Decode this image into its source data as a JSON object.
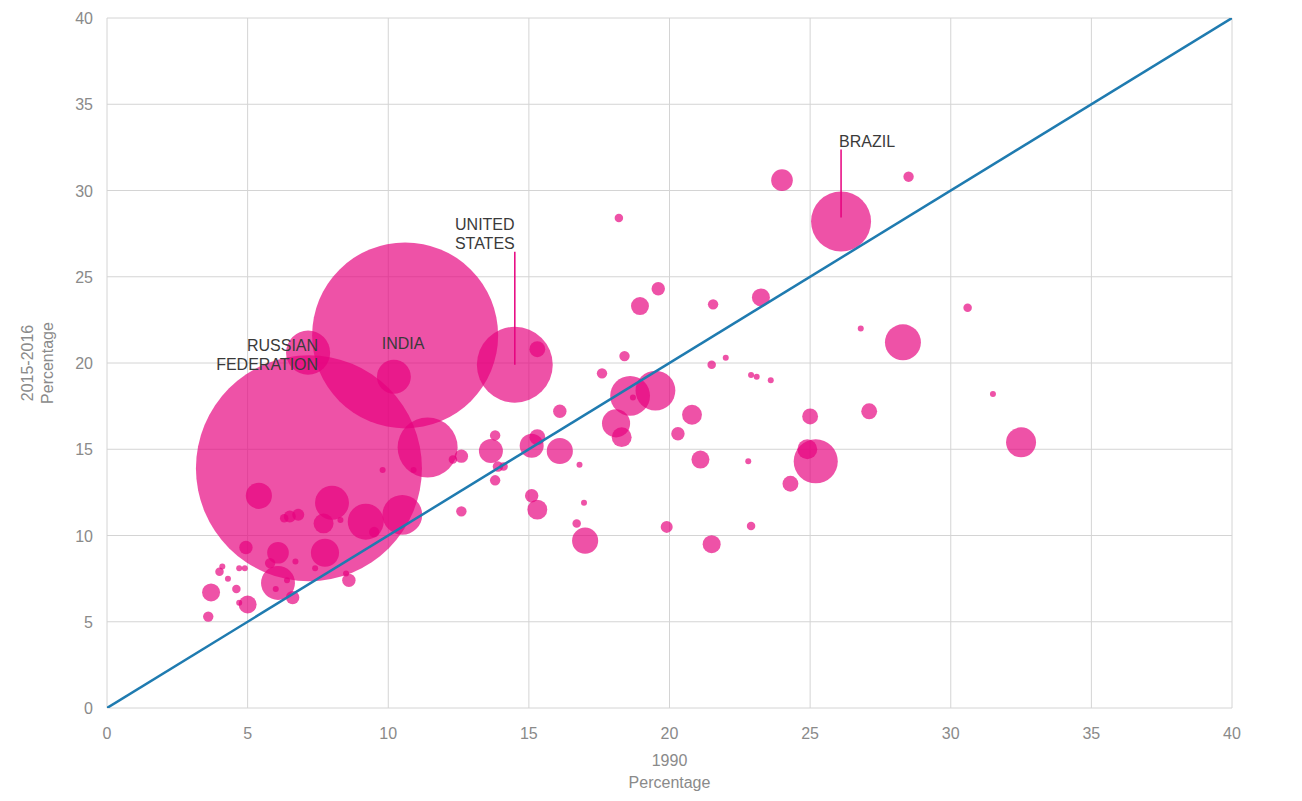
{
  "chart_data": {
    "type": "bubble",
    "x_label": [
      "1990",
      "Percentage"
    ],
    "y_label": [
      "2015-2016",
      "Percentage"
    ],
    "xlim": [
      0,
      40
    ],
    "ylim": [
      0,
      40
    ],
    "xticks": [
      0,
      5,
      10,
      15,
      20,
      25,
      30,
      35,
      40
    ],
    "yticks": [
      0,
      5,
      10,
      15,
      20,
      25,
      30,
      35,
      40
    ],
    "grid": true,
    "series": [
      {
        "type": "scatter",
        "color": "#e6007e",
        "x": [
          7.18,
          10.6,
          7.15,
          14.5,
          26.1,
          10.2,
          11.4,
          10.5,
          9.2,
          8.0,
          7.7,
          7.75,
          5.4,
          6.08,
          6.08,
          4.94,
          5.0,
          3.7,
          3.6,
          6.6,
          8.6,
          6.5,
          6.8,
          12.6,
          12.6,
          13.65,
          13.8,
          13.9,
          13.8,
          15.3,
          15.1,
          15.3,
          15.1,
          15.3,
          16.1,
          16.1,
          16.7,
          17.0,
          16.96,
          16.8,
          17.6,
          18.2,
          18.1,
          18.3,
          18.6,
          19.5,
          18.4,
          18.95,
          19.6,
          20.3,
          19.9,
          20.8,
          21.1,
          21.5,
          21.55,
          21.5,
          22.9,
          23.1,
          22.8,
          22.9,
          23.25,
          23.6,
          24.0,
          24.3,
          25.0,
          24.9,
          25.2,
          26.8,
          27.1,
          28.3,
          28.5,
          30.6,
          31.5,
          32.5,
          4.0,
          4.1,
          4.3,
          4.7,
          4.6,
          4.9,
          4.7,
          5.8,
          6.4,
          6.0,
          7.4,
          6.3,
          9.5,
          8.3,
          10.9,
          12.3,
          9.8,
          6.7,
          8.5,
          14.1,
          22.0,
          18.7
        ],
        "values": [
          13.9,
          21.6,
          20.6,
          19.9,
          28.2,
          19.2,
          15.1,
          11.2,
          10.8,
          11.9,
          10.7,
          9.0,
          12.3,
          9.0,
          7.25,
          9.3,
          6.0,
          6.7,
          5.3,
          6.4,
          7.4,
          11.1,
          11.2,
          14.6,
          11.4,
          14.9,
          15.8,
          14.0,
          13.2,
          20.8,
          15.2,
          15.7,
          12.3,
          11.5,
          14.9,
          17.2,
          10.7,
          9.7,
          11.9,
          14.1,
          19.4,
          28.4,
          16.5,
          15.7,
          18.1,
          18.4,
          20.4,
          23.3,
          24.3,
          15.9,
          10.5,
          17.0,
          14.4,
          19.9,
          23.4,
          9.5,
          19.3,
          19.2,
          14.3,
          10.55,
          23.8,
          19.0,
          30.6,
          13.0,
          16.9,
          15.0,
          14.3,
          22.0,
          17.2,
          21.2,
          30.8,
          23.2,
          18.2,
          15.4,
          7.9,
          8.2,
          7.5,
          8.1,
          6.9,
          8.1,
          6.1,
          8.4,
          7.4,
          6.9,
          8.1,
          11.0,
          10.2,
          10.9,
          13.8,
          14.4,
          13.8,
          8.5,
          7.8,
          14.0,
          20.3,
          18.0
        ],
        "size": [
          1419,
          961,
          54,
          160,
          100,
          32,
          100,
          44,
          36,
          32,
          11,
          22,
          19,
          13,
          32,
          5,
          9,
          9,
          3,
          5,
          5,
          4,
          4,
          5,
          3,
          16,
          3,
          3,
          3,
          7,
          16,
          7,
          5,
          11,
          19,
          5,
          2,
          19,
          1,
          1,
          3,
          2,
          22,
          11,
          44,
          44,
          3,
          9,
          5,
          5,
          4,
          11,
          9,
          2,
          3,
          9,
          1,
          1,
          1,
          2,
          9,
          1,
          13,
          7,
          7,
          11,
          54,
          1,
          7,
          36,
          3,
          2,
          1,
          25,
          2,
          1,
          1,
          1,
          2,
          1,
          1,
          3,
          1,
          1,
          1,
          2,
          3,
          1,
          1,
          2,
          1,
          1,
          1,
          2,
          1,
          1
        ]
      },
      {
        "type": "line",
        "color": "#1f7bb0",
        "x": [
          0,
          40
        ],
        "values": [
          0,
          40
        ]
      }
    ],
    "annotations": [
      {
        "text": "RUSSIAN FEDERATION",
        "point": 2
      },
      {
        "text": "INDIA",
        "point": 1
      },
      {
        "text": "UNITED STATES",
        "point": 3
      },
      {
        "text": "BRAZIL",
        "point": 4
      }
    ]
  }
}
